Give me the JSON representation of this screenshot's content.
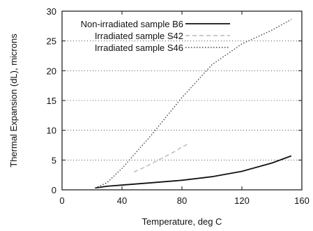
{
  "chart_data": {
    "type": "line",
    "title": "",
    "xlabel": "Temperature, deg C",
    "ylabel": "Thermal Expansion (dL), microns",
    "xlim": [
      0,
      160
    ],
    "ylim": [
      0,
      30
    ],
    "xticks": [
      0,
      40,
      80,
      120,
      160
    ],
    "yticks": [
      0,
      5,
      10,
      15,
      20,
      25,
      30
    ],
    "grid": "horizontal dotted",
    "legend_position": "top-left",
    "series": [
      {
        "name": "Non-irradiated sample B6",
        "style": "solid",
        "color": "#111111",
        "x": [
          22,
          30,
          40,
          60,
          80,
          100,
          120,
          140,
          153
        ],
        "y": [
          0.3,
          0.6,
          0.8,
          1.2,
          1.6,
          2.2,
          3.1,
          4.5,
          5.7
        ]
      },
      {
        "name": "Irradiated sample S42",
        "style": "dashed",
        "color": "#b8b8b8",
        "x": [
          48,
          55,
          62,
          68,
          75,
          80,
          85
        ],
        "y": [
          3.0,
          3.8,
          4.7,
          5.5,
          6.4,
          7.2,
          7.8
        ]
      },
      {
        "name": "Irradiated sample S46",
        "style": "dotted",
        "color": "#444444",
        "x": [
          22,
          30,
          40,
          60,
          80,
          100,
          120,
          140,
          153
        ],
        "y": [
          0.3,
          1.2,
          3.6,
          9.3,
          15.5,
          21.0,
          24.5,
          26.8,
          28.6
        ]
      }
    ]
  }
}
